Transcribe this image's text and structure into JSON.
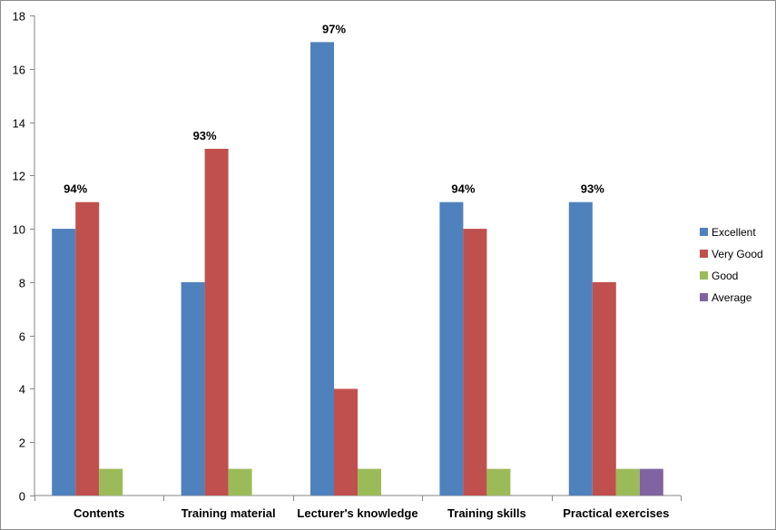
{
  "chart_data": {
    "type": "bar",
    "title": "",
    "xlabel": "",
    "ylabel": "",
    "ylim": [
      0,
      18
    ],
    "yticks": [
      0,
      2,
      4,
      6,
      8,
      10,
      12,
      14,
      16,
      18
    ],
    "grid": false,
    "legend_position": "right",
    "categories": [
      "Contents",
      "Training material",
      "Lecturer's knowledge",
      "Training skills",
      "Practical exercises"
    ],
    "series": [
      {
        "name": "Excellent",
        "color": "#4F81BD",
        "values": [
          10,
          8,
          17,
          11,
          11
        ]
      },
      {
        "name": "Very Good",
        "color": "#C0504D",
        "values": [
          11,
          13,
          4,
          10,
          8
        ]
      },
      {
        "name": "Good",
        "color": "#9BBB59",
        "values": [
          1,
          1,
          1,
          1,
          1
        ]
      },
      {
        "name": "Average",
        "color": "#8064A2",
        "values": [
          0,
          0,
          0,
          0,
          1
        ]
      }
    ],
    "annotations": [
      "94%",
      "93%",
      "97%",
      "94%",
      "93%"
    ]
  }
}
